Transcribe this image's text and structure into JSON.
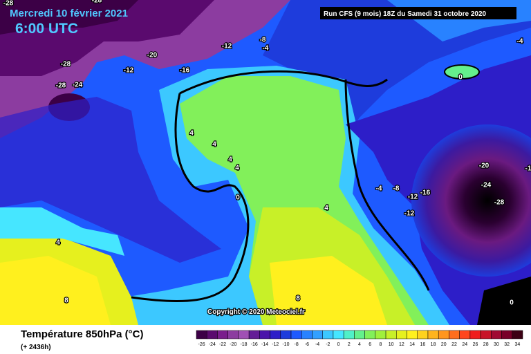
{
  "header": {
    "date": "Mercredi 10 février 2021",
    "time": "6:00 UTC",
    "run": "Run CFS (9 mois) 18Z du Samedi 31 octobre 2020"
  },
  "map": {
    "contour_labels": [
      "-28",
      "-28",
      "-20",
      "-28",
      "-12",
      "-28",
      "-24",
      "-16",
      "-12",
      "-8",
      "-4",
      "-4",
      "0",
      "4",
      "4",
      "4",
      "4",
      "0",
      "4",
      "4",
      "8",
      "8",
      "-20",
      "-1",
      "-24",
      "-28",
      "-4",
      "-8",
      "-12",
      "-16",
      "-12",
      "0"
    ]
  },
  "copyright": "Copyright © 2020 Meteociel.fr",
  "legend": {
    "title": "Température 850hPa (°C)",
    "subtitle": "(+ 2436h)",
    "scale": [
      -26,
      -24,
      -22,
      -20,
      -18,
      -16,
      -14,
      -12,
      -10,
      -8,
      -6,
      -4,
      -2,
      0,
      2,
      4,
      6,
      8,
      10,
      12,
      14,
      16,
      18,
      20,
      22,
      24,
      26,
      28,
      30,
      32,
      34
    ],
    "colors": [
      "#3c0046",
      "#5a0a6e",
      "#7a1e8c",
      "#8c3ca0",
      "#a050b4",
      "#641e96",
      "#4b14aa",
      "#2d1ec8",
      "#1e3cdc",
      "#1e5aff",
      "#2882ff",
      "#32a0ff",
      "#3cc8ff",
      "#46e6ff",
      "#50f0c8",
      "#64f08c",
      "#82f05a",
      "#a0f03c",
      "#c8f028",
      "#e6f01e",
      "#fff01e",
      "#ffd21e",
      "#ffb41e",
      "#ff961e",
      "#ff6e1e",
      "#ff461e",
      "#f01e1e",
      "#c81428",
      "#a00a32",
      "#780028",
      "#3c0014"
    ]
  }
}
